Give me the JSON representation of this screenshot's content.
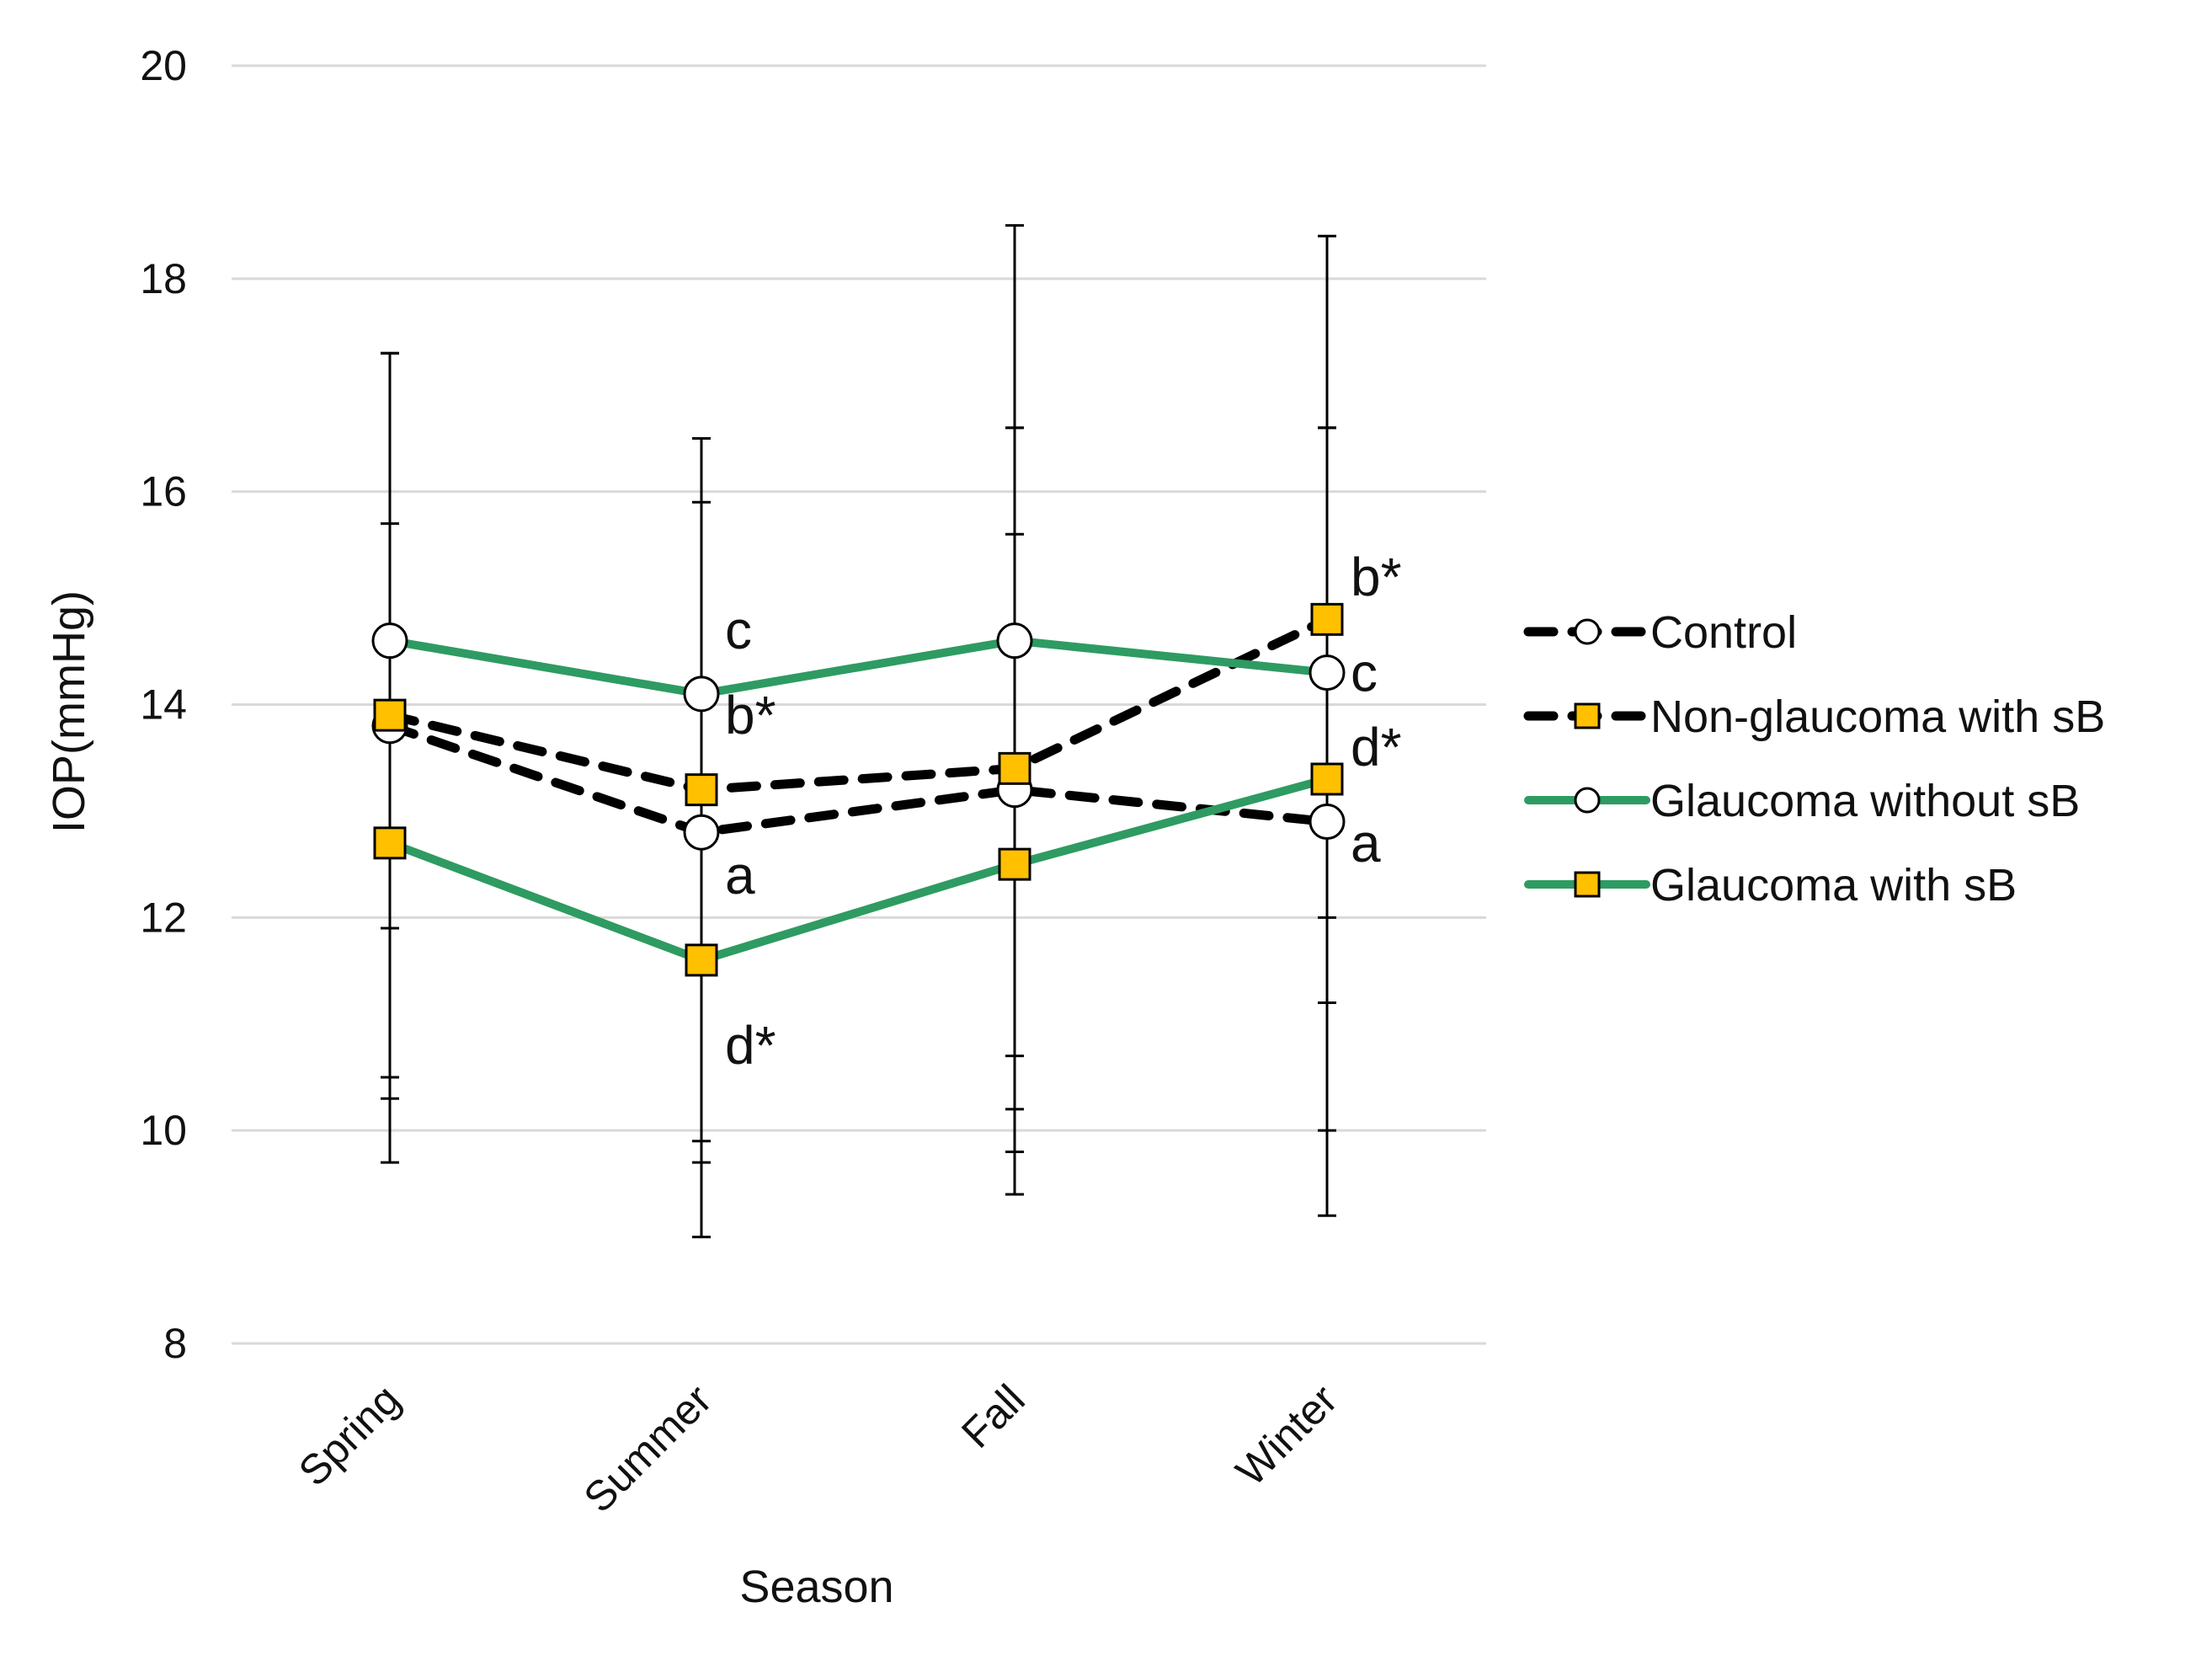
{
  "chart_data": {
    "type": "line",
    "title": "",
    "xlabel": "Season",
    "ylabel": "IOP(mmHg)",
    "categories": [
      "Spring",
      "Summer",
      "Fall",
      "Winter"
    ],
    "ylim": [
      8,
      20
    ],
    "yticks": [
      8,
      10,
      12,
      14,
      16,
      18,
      20
    ],
    "grid": true,
    "legend_position": "right",
    "series": [
      {
        "name": "Control",
        "values": [
          13.8,
          12.8,
          13.2,
          12.9
        ],
        "error": [
          3.5,
          3.1,
          3.4,
          3.7
        ],
        "line_color": "#000000",
        "dashed": true,
        "marker": "circle",
        "marker_fill": "#ffffff"
      },
      {
        "name": "Non-glaucoma with sB",
        "values": [
          13.9,
          13.2,
          13.4,
          14.8
        ],
        "error": [
          3.4,
          3.3,
          3.2,
          3.6
        ],
        "line_color": "#000000",
        "dashed": true,
        "marker": "square",
        "marker_fill": "#FFC000"
      },
      {
        "name": "Glaucoma without sB",
        "values": [
          14.6,
          14.1,
          14.6,
          14.3
        ],
        "error": [
          2.7,
          2.4,
          3.9,
          2.3
        ],
        "line_color": "#2E9B62",
        "dashed": false,
        "marker": "circle",
        "marker_fill": "#ffffff"
      },
      {
        "name": "Glaucoma with sB",
        "values": [
          12.7,
          11.6,
          12.5,
          13.3
        ],
        "error": [
          3.0,
          2.6,
          3.1,
          3.3
        ],
        "line_color": "#2E9B62",
        "dashed": false,
        "marker": "square",
        "marker_fill": "#FFC000"
      }
    ],
    "annotations": [
      {
        "text": "c",
        "category": "Summer",
        "y": 14.7
      },
      {
        "text": "b*",
        "category": "Summer",
        "y": 13.9
      },
      {
        "text": "a",
        "category": "Summer",
        "y": 12.4
      },
      {
        "text": "d*",
        "category": "Summer",
        "y": 10.8
      },
      {
        "text": "b*",
        "category": "Winter",
        "y": 15.2
      },
      {
        "text": "c",
        "category": "Winter",
        "y": 14.3
      },
      {
        "text": "d*",
        "category": "Winter",
        "y": 13.6
      },
      {
        "text": "a",
        "category": "Winter",
        "y": 12.7
      }
    ]
  }
}
